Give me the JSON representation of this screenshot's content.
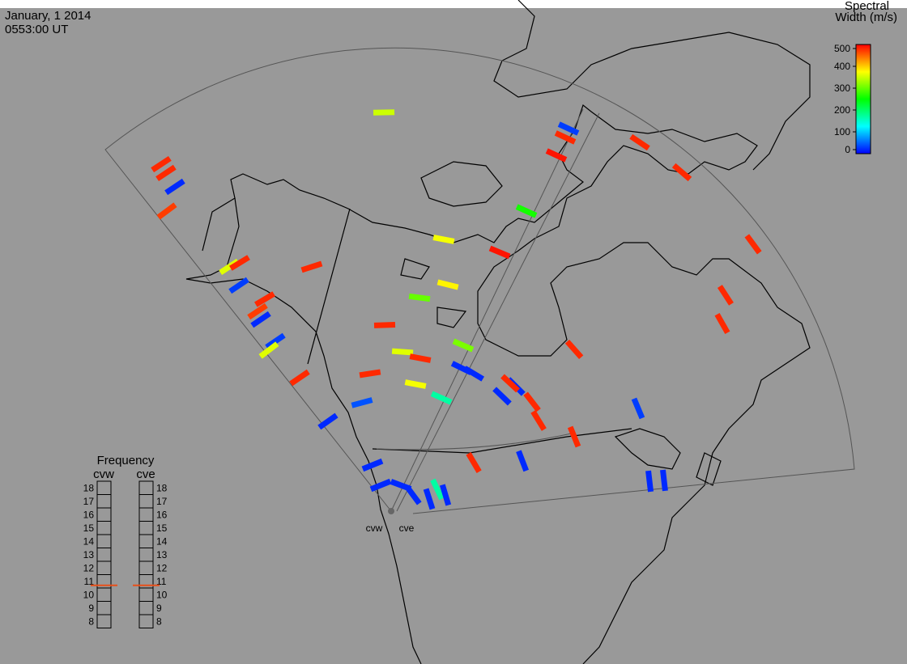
{
  "header": {
    "date": "January, 1 2014",
    "time": "0553:00 UT"
  },
  "colorbar": {
    "title": [
      "Spectral",
      "Width (m/s)"
    ],
    "range": [
      0,
      500
    ],
    "ticks": [
      0,
      100,
      200,
      300,
      400,
      500
    ]
  },
  "frequency": {
    "title": "Frequency",
    "ticks": [
      8,
      9,
      10,
      11,
      12,
      13,
      14,
      15,
      16,
      17,
      18
    ],
    "radars": [
      {
        "name": "cvw",
        "value": 10.7
      },
      {
        "name": "cve",
        "value": 10.7
      }
    ]
  },
  "stations": [
    "cvw",
    "cve"
  ],
  "cells": [
    {
      "east_km": -56,
      "north_km": 3081,
      "spectral_width": 350
    },
    {
      "east_km": -1775,
      "north_km": 2681,
      "spectral_width": 480
    },
    {
      "east_km": -1738,
      "north_km": 2613,
      "spectral_width": 480
    },
    {
      "east_km": -1669,
      "north_km": 2506,
      "spectral_width": 20
    },
    {
      "east_km": -1731,
      "north_km": 2319,
      "spectral_width": 470
    },
    {
      "east_km": -1250,
      "north_km": 1888,
      "spectral_width": 360
    },
    {
      "east_km": -1169,
      "north_km": 1919,
      "spectral_width": 480
    },
    {
      "east_km": -1175,
      "north_km": 1744,
      "spectral_width": 30
    },
    {
      "east_km": -975,
      "north_km": 1638,
      "spectral_width": 480
    },
    {
      "east_km": -1031,
      "north_km": 1544,
      "spectral_width": 470
    },
    {
      "east_km": -1006,
      "north_km": 1481,
      "spectral_width": 20
    },
    {
      "east_km": -894,
      "north_km": 1313,
      "spectral_width": 30
    },
    {
      "east_km": -944,
      "north_km": 1244,
      "spectral_width": 360
    },
    {
      "east_km": -613,
      "north_km": 1888,
      "spectral_width": 480
    },
    {
      "east_km": 406,
      "north_km": 2100,
      "spectral_width": 370
    },
    {
      "east_km": 438,
      "north_km": 1750,
      "spectral_width": 380
    },
    {
      "east_km": 219,
      "north_km": 1650,
      "spectral_width": 300
    },
    {
      "east_km": -50,
      "north_km": 1438,
      "spectral_width": 480
    },
    {
      "east_km": 838,
      "north_km": 2000,
      "spectral_width": 490
    },
    {
      "east_km": 1044,
      "north_km": 2319,
      "spectral_width": 260
    },
    {
      "east_km": 1369,
      "north_km": 2956,
      "spectral_width": 30
    },
    {
      "east_km": 1344,
      "north_km": 2888,
      "spectral_width": 480
    },
    {
      "east_km": 1275,
      "north_km": 2750,
      "spectral_width": 490
    },
    {
      "east_km": 1919,
      "north_km": 2850,
      "spectral_width": 480
    },
    {
      "east_km": 2244,
      "north_km": 2619,
      "spectral_width": 480
    },
    {
      "east_km": 2794,
      "north_km": 2063,
      "spectral_width": 480
    },
    {
      "east_km": 2581,
      "north_km": 1669,
      "spectral_width": 480
    },
    {
      "east_km": 2556,
      "north_km": 1450,
      "spectral_width": 480
    },
    {
      "east_km": 1413,
      "north_km": 1250,
      "spectral_width": 480
    },
    {
      "east_km": 556,
      "north_km": 1281,
      "spectral_width": 310
    },
    {
      "east_km": 88,
      "north_km": 1231,
      "spectral_width": 360
    },
    {
      "east_km": 225,
      "north_km": 1181,
      "spectral_width": 480
    },
    {
      "east_km": -163,
      "north_km": 1063,
      "spectral_width": 480
    },
    {
      "east_km": 188,
      "north_km": 981,
      "spectral_width": 370
    },
    {
      "east_km": 388,
      "north_km": 875,
      "spectral_width": 170
    },
    {
      "east_km": -706,
      "north_km": 1031,
      "spectral_width": 480
    },
    {
      "east_km": -225,
      "north_km": 838,
      "spectral_width": 40
    },
    {
      "east_km": -488,
      "north_km": 694,
      "spectral_width": 20
    },
    {
      "east_km": 1906,
      "north_km": 794,
      "spectral_width": 30
    },
    {
      "east_km": 1138,
      "north_km": 700,
      "spectral_width": 480
    },
    {
      "east_km": 1413,
      "north_km": 575,
      "spectral_width": 480
    },
    {
      "east_km": 638,
      "north_km": 375,
      "spectral_width": 480
    },
    {
      "east_km": 1013,
      "north_km": 388,
      "spectral_width": 20
    },
    {
      "east_km": 2106,
      "north_km": 238,
      "spectral_width": 20
    },
    {
      "east_km": 1994,
      "north_km": 231,
      "spectral_width": 20
    },
    {
      "east_km": 638,
      "north_km": 1063,
      "spectral_width": 20
    },
    {
      "east_km": 856,
      "north_km": 888,
      "spectral_width": 20
    },
    {
      "east_km": 963,
      "north_km": 963,
      "spectral_width": 20
    },
    {
      "east_km": 919,
      "north_km": 988,
      "spectral_width": 480
    },
    {
      "east_km": 1088,
      "north_km": 844,
      "spectral_width": 480
    },
    {
      "east_km": 169,
      "north_km": 125,
      "spectral_width": 20
    },
    {
      "east_km": 294,
      "north_km": 94,
      "spectral_width": 20
    },
    {
      "east_km": -81,
      "north_km": 200,
      "spectral_width": 20
    },
    {
      "east_km": 356,
      "north_km": 169,
      "spectral_width": 170
    },
    {
      "east_km": 419,
      "north_km": 125,
      "spectral_width": 20
    },
    {
      "east_km": 75,
      "north_km": 200,
      "spectral_width": 20
    },
    {
      "east_km": -144,
      "north_km": 356,
      "spectral_width": 20
    },
    {
      "east_km": 544,
      "north_km": 1106,
      "spectral_width": 20
    }
  ]
}
